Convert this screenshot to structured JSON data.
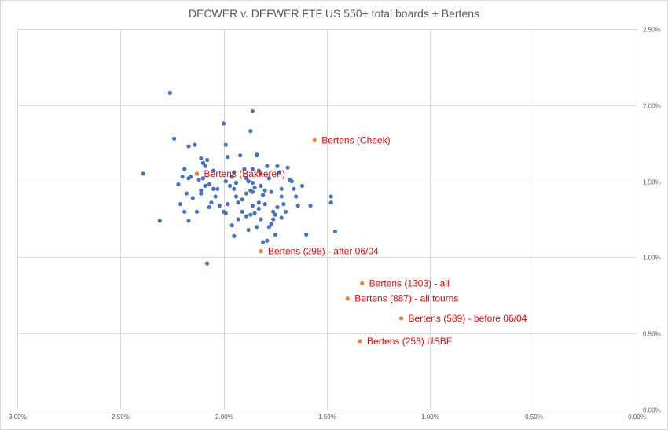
{
  "chart_data": {
    "type": "scatter",
    "title": "DECWER v. DEFWER FTF US 550+ total boards + Bertens",
    "xlabel": "",
    "ylabel": "",
    "x_reversed": true,
    "xlim": [
      3.0,
      0.0
    ],
    "ylim": [
      0.0,
      2.5
    ],
    "x_unit": "%",
    "y_axis_position": "right",
    "grid": "vertical major gridlines and horizontal major gridlines",
    "legend": "none",
    "x_ticks": [
      "3.00%",
      "2.50%",
      "2.00%",
      "1.50%",
      "1.00%",
      "0.50%",
      "0.00%"
    ],
    "y_ticks": [
      "0.00%",
      "0.50%",
      "1.00%",
      "1.50%",
      "2.00%",
      "2.50%"
    ],
    "colors": {
      "players": "#4472c4",
      "bertens": "#ed7d31",
      "label_text": "#ff0000",
      "grid": "#d9d9d9",
      "tick_text": "#595959"
    },
    "series": [
      {
        "color": "#4472c4",
        "points": [
          [
            2.26,
            2.08
          ],
          [
            2.24,
            1.78
          ],
          [
            2.17,
            1.73
          ],
          [
            2.14,
            1.74
          ],
          [
            2.11,
            1.65
          ],
          [
            2.1,
            1.62
          ],
          [
            2.09,
            1.6
          ],
          [
            2.39,
            1.55
          ],
          [
            2.19,
            1.58
          ],
          [
            2.2,
            1.53
          ],
          [
            2.17,
            1.52
          ],
          [
            2.16,
            1.53
          ],
          [
            2.13,
            1.55
          ],
          [
            2.12,
            1.51
          ],
          [
            2.1,
            1.52
          ],
          [
            2.09,
            1.47
          ],
          [
            2.11,
            1.44
          ],
          [
            2.11,
            1.42
          ],
          [
            2.07,
            1.48
          ],
          [
            2.05,
            1.45
          ],
          [
            2.04,
            1.4
          ],
          [
            2.03,
            1.45
          ],
          [
            2.0,
            1.88
          ],
          [
            1.99,
            1.74
          ],
          [
            1.98,
            1.66
          ],
          [
            1.99,
            1.5
          ],
          [
            1.96,
            1.53
          ],
          [
            1.95,
            1.56
          ],
          [
            1.95,
            1.45
          ],
          [
            1.94,
            1.4
          ],
          [
            1.93,
            1.36
          ],
          [
            1.92,
            1.67
          ],
          [
            1.9,
            1.58
          ],
          [
            1.89,
            1.52
          ],
          [
            1.88,
            1.5
          ],
          [
            1.87,
            1.83
          ],
          [
            1.86,
            1.96
          ],
          [
            1.86,
            1.58
          ],
          [
            1.86,
            1.49
          ],
          [
            1.86,
            1.43
          ],
          [
            1.84,
            1.68
          ],
          [
            1.84,
            1.67
          ],
          [
            1.83,
            1.57
          ],
          [
            1.82,
            1.55
          ],
          [
            1.82,
            1.47
          ],
          [
            1.81,
            1.41
          ],
          [
            1.8,
            1.35
          ],
          [
            1.79,
            1.6
          ],
          [
            1.78,
            1.52
          ],
          [
            1.77,
            1.43
          ],
          [
            1.76,
            1.3
          ],
          [
            1.76,
            1.25
          ],
          [
            1.75,
            1.15
          ],
          [
            1.74,
            1.6
          ],
          [
            1.73,
            1.56
          ],
          [
            1.72,
            1.45
          ],
          [
            1.72,
            1.4
          ],
          [
            1.71,
            1.35
          ],
          [
            1.7,
            1.3
          ],
          [
            1.69,
            1.59
          ],
          [
            1.68,
            1.51
          ],
          [
            1.67,
            1.5
          ],
          [
            1.66,
            1.45
          ],
          [
            1.65,
            1.4
          ],
          [
            1.64,
            1.34
          ],
          [
            1.62,
            1.47
          ],
          [
            1.6,
            1.15
          ],
          [
            1.58,
            1.34
          ],
          [
            1.48,
            1.4
          ],
          [
            1.48,
            1.36
          ],
          [
            1.46,
            1.17
          ],
          [
            2.31,
            1.24
          ],
          [
            2.21,
            1.35
          ],
          [
            2.19,
            1.3
          ],
          [
            2.17,
            1.24
          ],
          [
            2.15,
            1.39
          ],
          [
            2.13,
            1.3
          ],
          [
            2.07,
            1.33
          ],
          [
            2.06,
            1.36
          ],
          [
            2.02,
            1.34
          ],
          [
            2.0,
            1.3
          ],
          [
            1.99,
            1.29
          ],
          [
            1.98,
            1.35
          ],
          [
            1.96,
            1.21
          ],
          [
            1.95,
            1.14
          ],
          [
            1.93,
            1.25
          ],
          [
            1.91,
            1.3
          ],
          [
            1.89,
            1.27
          ],
          [
            1.88,
            1.18
          ],
          [
            1.87,
            1.28
          ],
          [
            1.86,
            1.34
          ],
          [
            1.85,
            1.29
          ],
          [
            1.84,
            1.2
          ],
          [
            1.83,
            1.32
          ],
          [
            1.82,
            1.25
          ],
          [
            1.81,
            1.1
          ],
          [
            1.79,
            1.11
          ],
          [
            1.78,
            1.2
          ],
          [
            1.77,
            1.22
          ],
          [
            1.75,
            1.28
          ],
          [
            1.74,
            1.33
          ],
          [
            1.72,
            1.26
          ],
          [
            2.08,
            0.96
          ],
          [
            1.91,
            1.38
          ],
          [
            1.89,
            1.42
          ],
          [
            1.87,
            1.44
          ],
          [
            1.85,
            1.46
          ],
          [
            1.83,
            1.36
          ],
          [
            1.8,
            1.44
          ],
          [
            1.94,
            1.49
          ],
          [
            1.97,
            1.47
          ],
          [
            2.05,
            1.57
          ],
          [
            2.08,
            1.64
          ],
          [
            2.22,
            1.48
          ],
          [
            2.18,
            1.42
          ]
        ]
      },
      {
        "color": "#ed7d31",
        "points": [
          {
            "x": 1.56,
            "y": 1.77,
            "label": "Bertens (Cheek)"
          },
          {
            "x": 2.13,
            "y": 1.55,
            "label": "Bertens (Bakkeren)"
          },
          {
            "x": 1.82,
            "y": 1.04,
            "label": "Bertens (298) - after 06/04"
          },
          {
            "x": 1.33,
            "y": 0.83,
            "label": "Bertens (1303) - all"
          },
          {
            "x": 1.4,
            "y": 0.73,
            "label": "Bertens (887) - all tourns"
          },
          {
            "x": 1.14,
            "y": 0.6,
            "label": "Bertens (589) - before 06/04"
          },
          {
            "x": 1.34,
            "y": 0.45,
            "label": "Bertens (253) USBF"
          }
        ]
      }
    ]
  }
}
